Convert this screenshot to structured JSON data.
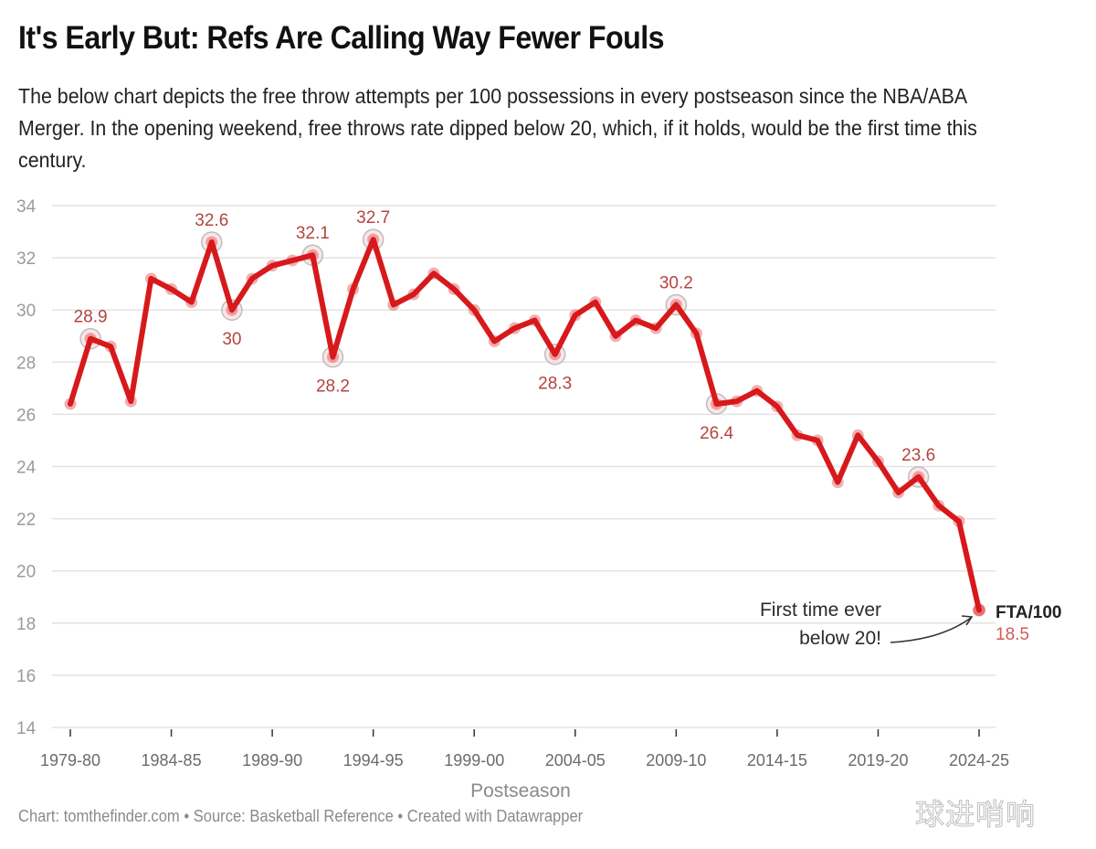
{
  "title": "It's Early But: Refs Are Calling Way Fewer Fouls",
  "subtitle": "The below chart depicts the free throw attempts per 100 possessions in every postseason since the NBA/ABA Merger. In the opening weekend, free throws rate dipped below 20, which, if it holds, would be the first time this century.",
  "footer": "Chart: tomthefinder.com • Source: Basketball Reference • Created with Datawrapper",
  "watermark": "球进哨响",
  "colors": {
    "line": "#d7191c",
    "label": "#b5443f",
    "grid": "#e3e3e3"
  },
  "chart_data": {
    "type": "line",
    "title": "It's Early But: Refs Are Calling Way Fewer Fouls",
    "xlabel": "Postseason",
    "ylabel": "",
    "ylim": [
      14,
      34
    ],
    "yticks": [
      14,
      16,
      18,
      20,
      22,
      24,
      26,
      28,
      30,
      32,
      34
    ],
    "xticks": [
      "1979-80",
      "1984-85",
      "1989-90",
      "1994-95",
      "1999-00",
      "2004-05",
      "2009-10",
      "2014-15",
      "2019-20",
      "2024-25"
    ],
    "grid": "horizontal",
    "x": [
      "1979-80",
      "1980-81",
      "1981-82",
      "1982-83",
      "1983-84",
      "1984-85",
      "1985-86",
      "1986-87",
      "1987-88",
      "1988-89",
      "1989-90",
      "1990-91",
      "1991-92",
      "1992-93",
      "1993-94",
      "1994-95",
      "1995-96",
      "1996-97",
      "1997-98",
      "1998-99",
      "1999-00",
      "2000-01",
      "2001-02",
      "2002-03",
      "2003-04",
      "2004-05",
      "2005-06",
      "2006-07",
      "2007-08",
      "2008-09",
      "2009-10",
      "2010-11",
      "2011-12",
      "2012-13",
      "2013-14",
      "2014-15",
      "2015-16",
      "2016-17",
      "2017-18",
      "2018-19",
      "2019-20",
      "2020-21",
      "2021-22",
      "2022-23",
      "2023-24",
      "2024-25"
    ],
    "series": [
      {
        "name": "FTA/100",
        "values": [
          26.4,
          28.9,
          28.6,
          26.5,
          31.2,
          30.8,
          30.3,
          32.6,
          30.0,
          31.2,
          31.7,
          31.9,
          32.1,
          28.2,
          30.8,
          32.7,
          30.2,
          30.6,
          31.4,
          30.8,
          30.0,
          28.8,
          29.3,
          29.6,
          28.3,
          29.8,
          30.3,
          29.0,
          29.6,
          29.3,
          30.2,
          29.1,
          26.4,
          26.5,
          26.9,
          26.3,
          25.2,
          25.0,
          23.4,
          25.2,
          24.2,
          23.0,
          23.6,
          22.5,
          21.9,
          18.5
        ]
      }
    ],
    "labeled_points": [
      {
        "x": "1980-81",
        "label": "28.9",
        "position": "above"
      },
      {
        "x": "1986-87",
        "label": "32.6",
        "position": "above"
      },
      {
        "x": "1987-88",
        "label": "30",
        "position": "below"
      },
      {
        "x": "1991-92",
        "label": "32.1",
        "position": "above"
      },
      {
        "x": "1992-93",
        "label": "28.2",
        "position": "below"
      },
      {
        "x": "1994-95",
        "label": "32.7",
        "position": "above"
      },
      {
        "x": "2003-04",
        "label": "28.3",
        "position": "below"
      },
      {
        "x": "2009-10",
        "label": "30.2",
        "position": "above"
      },
      {
        "x": "2011-12",
        "label": "26.4",
        "position": "below"
      },
      {
        "x": "2021-22",
        "label": "23.6",
        "position": "above"
      }
    ],
    "series_label": "FTA/100",
    "last_value_label": "18.5",
    "annotation": {
      "lines": [
        "First time ever",
        "below 20!"
      ],
      "target": "2024-25"
    }
  }
}
